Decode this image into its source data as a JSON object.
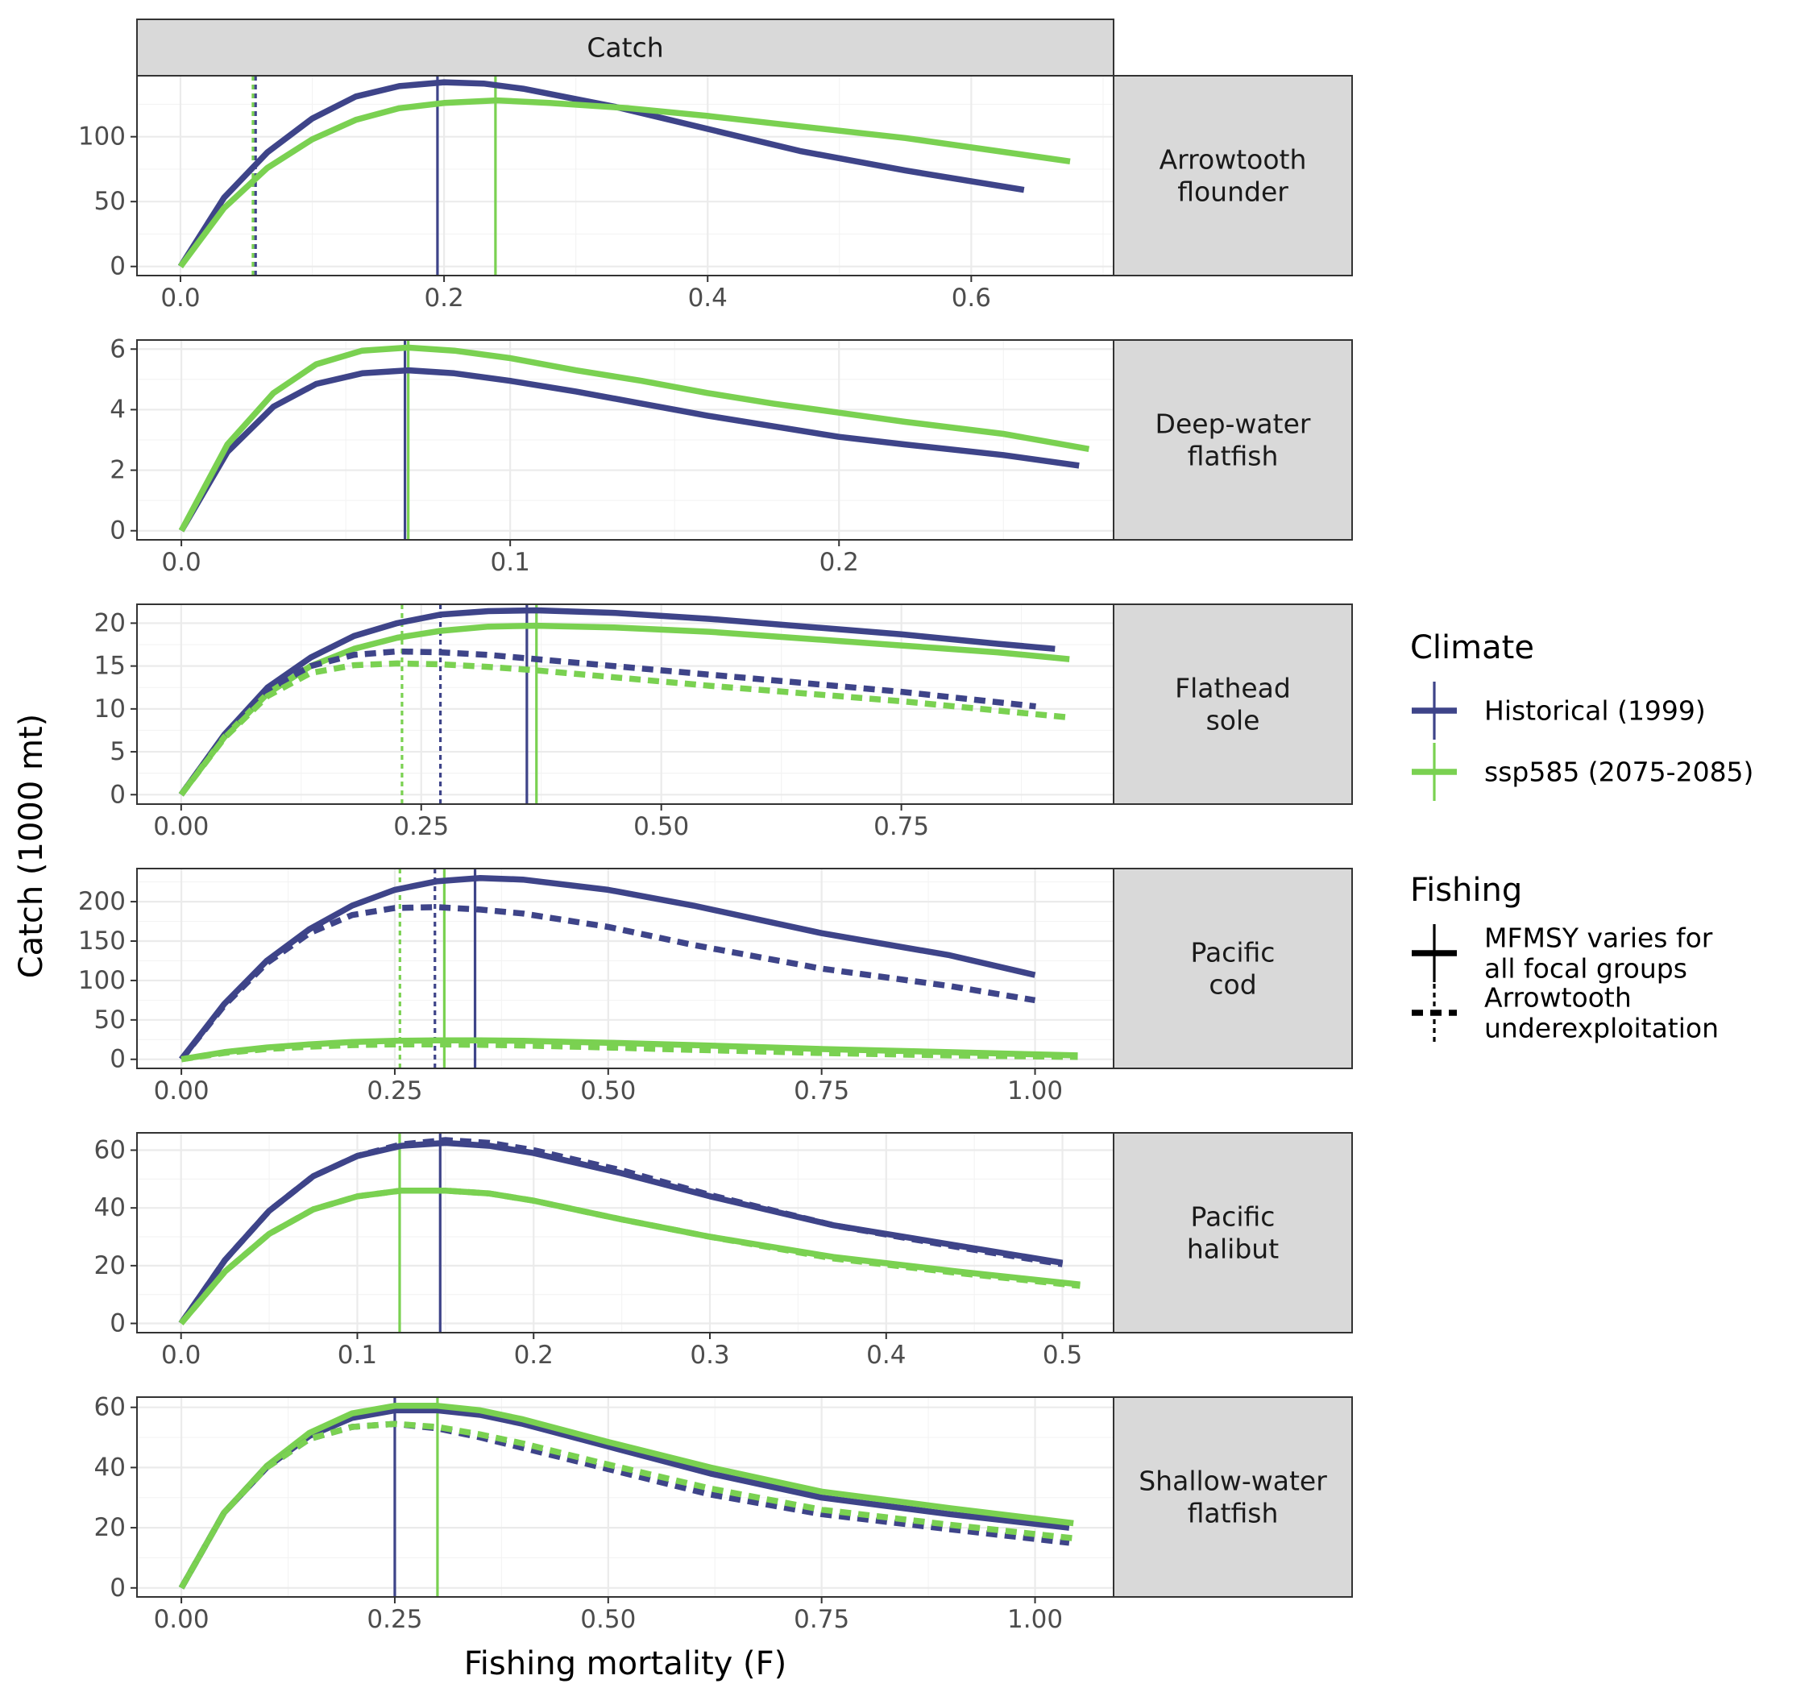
{
  "colors": {
    "historical": "#3e4489",
    "ssp585": "#7ad151"
  },
  "strip_top_label": "Catch",
  "axes": {
    "xlabel": "Fishing mortality (F)",
    "ylabel": "Catch (1000 mt)"
  },
  "legend": {
    "climate_title": "Climate",
    "climate_items": [
      {
        "label": "Historical (1999)",
        "color": "#3e4489"
      },
      {
        "label": "ssp585 (2075-2085)",
        "color": "#7ad151"
      }
    ],
    "fishing_title": "Fishing",
    "fishing_items": [
      {
        "lines": [
          "MFMSY varies for",
          "all focal groups"
        ],
        "linetype": "solid"
      },
      {
        "lines": [
          "Arrowtooth",
          "underexploitation"
        ],
        "linetype": "dashed"
      }
    ]
  },
  "chart_data": [
    {
      "type": "line",
      "panel": [
        "Arrowtooth",
        "flounder"
      ],
      "xlim": [
        -0.033,
        0.708
      ],
      "ylim": [
        -7,
        147
      ],
      "xticks": [
        0,
        0.2,
        0.4,
        0.6
      ],
      "xtick_labels": [
        "0.0",
        "0.2",
        "0.4",
        "0.6"
      ],
      "xminor": [
        0.1,
        0.3,
        0.5,
        0.7
      ],
      "yticks": [
        0,
        50,
        100
      ],
      "ytick_labels": [
        "0",
        "50",
        "100"
      ],
      "yminor": [
        25,
        75,
        125
      ],
      "series": [
        {
          "climate": "historical",
          "linetype": "solid",
          "x": [
            0,
            0.033,
            0.066,
            0.1,
            0.133,
            0.166,
            0.2,
            0.23,
            0.26,
            0.33,
            0.4,
            0.47,
            0.55,
            0.64
          ],
          "y": [
            0,
            53,
            88,
            114,
            131,
            139,
            142,
            141,
            137,
            123,
            106,
            89,
            74,
            59
          ]
        },
        {
          "climate": "ssp585",
          "linetype": "solid",
          "x": [
            0,
            0.033,
            0.066,
            0.1,
            0.133,
            0.166,
            0.2,
            0.24,
            0.28,
            0.34,
            0.4,
            0.47,
            0.55,
            0.675
          ],
          "y": [
            0,
            45,
            76,
            98,
            113,
            122,
            126,
            128,
            126,
            122,
            116,
            108,
            99,
            81
          ]
        }
      ],
      "vlines": [
        {
          "climate": "historical",
          "linetype": "solid",
          "x": 0.195
        },
        {
          "climate": "ssp585",
          "linetype": "solid",
          "x": 0.239
        },
        {
          "climate": "historical",
          "linetype": "dashed",
          "x": 0.057
        },
        {
          "climate": "ssp585",
          "linetype": "dashed",
          "x": 0.055
        }
      ]
    },
    {
      "type": "line",
      "panel": [
        "Deep-water",
        "flatfish"
      ],
      "xlim": [
        -0.0135,
        0.2835
      ],
      "ylim": [
        -0.3,
        6.3
      ],
      "xticks": [
        0,
        0.1,
        0.2
      ],
      "xtick_labels": [
        "0.0",
        "0.1",
        "0.2"
      ],
      "xminor": [
        0.05,
        0.15,
        0.25
      ],
      "yticks": [
        0,
        2,
        4,
        6
      ],
      "ytick_labels": [
        "0",
        "2",
        "4",
        "6"
      ],
      "yminor": [
        1,
        3,
        5
      ],
      "series": [
        {
          "climate": "historical",
          "linetype": "solid",
          "x": [
            0,
            0.014,
            0.028,
            0.041,
            0.055,
            0.069,
            0.083,
            0.1,
            0.12,
            0.14,
            0.16,
            0.18,
            0.2,
            0.22,
            0.25,
            0.273
          ],
          "y": [
            0,
            2.6,
            4.1,
            4.85,
            5.2,
            5.3,
            5.2,
            4.95,
            4.6,
            4.2,
            3.8,
            3.45,
            3.1,
            2.85,
            2.5,
            2.15
          ]
        },
        {
          "climate": "ssp585",
          "linetype": "solid",
          "x": [
            0,
            0.014,
            0.028,
            0.041,
            0.055,
            0.069,
            0.083,
            0.1,
            0.12,
            0.14,
            0.16,
            0.18,
            0.2,
            0.22,
            0.25,
            0.276
          ],
          "y": [
            0,
            2.85,
            4.55,
            5.5,
            5.95,
            6.05,
            5.95,
            5.7,
            5.3,
            4.95,
            4.55,
            4.2,
            3.9,
            3.6,
            3.2,
            2.7
          ]
        }
      ],
      "vlines": [
        {
          "climate": "historical",
          "linetype": "solid",
          "x": 0.068
        },
        {
          "climate": "ssp585",
          "linetype": "solid",
          "x": 0.069
        }
      ]
    },
    {
      "type": "line",
      "panel": [
        "Flathead",
        "sole"
      ],
      "xlim": [
        -0.046,
        0.971
      ],
      "ylim": [
        -1.1,
        22.2
      ],
      "xticks": [
        0,
        0.25,
        0.5,
        0.75
      ],
      "xtick_labels": [
        "0.00",
        "0.25",
        "0.50",
        "0.75"
      ],
      "xminor": [
        0.125,
        0.375,
        0.625,
        0.875
      ],
      "yticks": [
        0,
        5,
        10,
        15,
        20
      ],
      "ytick_labels": [
        "0",
        "5",
        "10",
        "15",
        "20"
      ],
      "yminor": [
        2.5,
        7.5,
        12.5,
        17.5
      ],
      "series": [
        {
          "climate": "historical",
          "linetype": "solid",
          "x": [
            0,
            0.045,
            0.09,
            0.135,
            0.18,
            0.225,
            0.27,
            0.32,
            0.37,
            0.45,
            0.55,
            0.65,
            0.75,
            0.85,
            0.91
          ],
          "y": [
            0,
            7,
            12.5,
            16,
            18.5,
            20,
            21,
            21.4,
            21.5,
            21.2,
            20.5,
            19.6,
            18.7,
            17.6,
            17
          ]
        },
        {
          "climate": "ssp585",
          "linetype": "solid",
          "x": [
            0,
            0.045,
            0.09,
            0.135,
            0.18,
            0.225,
            0.27,
            0.32,
            0.37,
            0.45,
            0.55,
            0.65,
            0.75,
            0.85,
            0.925
          ],
          "y": [
            0,
            6.7,
            11.8,
            15,
            17,
            18.3,
            19.1,
            19.6,
            19.7,
            19.5,
            19,
            18.2,
            17.4,
            16.6,
            15.8
          ]
        },
        {
          "climate": "historical",
          "linetype": "dashed",
          "x": [
            0,
            0.045,
            0.09,
            0.135,
            0.18,
            0.225,
            0.27,
            0.32,
            0.37,
            0.45,
            0.55,
            0.65,
            0.75,
            0.89
          ],
          "y": [
            0,
            6.9,
            12.2,
            15,
            16.3,
            16.7,
            16.6,
            16.3,
            15.8,
            15,
            14,
            13,
            12,
            10.3
          ]
        },
        {
          "climate": "ssp585",
          "linetype": "dashed",
          "x": [
            0,
            0.045,
            0.09,
            0.135,
            0.18,
            0.225,
            0.27,
            0.32,
            0.37,
            0.45,
            0.55,
            0.65,
            0.75,
            0.925
          ],
          "y": [
            0,
            6.6,
            11.5,
            14.2,
            15.1,
            15.3,
            15.2,
            14.9,
            14.5,
            13.7,
            12.7,
            11.8,
            10.9,
            9
          ]
        }
      ],
      "vlines": [
        {
          "climate": "historical",
          "linetype": "solid",
          "x": 0.36
        },
        {
          "climate": "ssp585",
          "linetype": "solid",
          "x": 0.37
        },
        {
          "climate": "historical",
          "linetype": "dashed",
          "x": 0.27
        },
        {
          "climate": "ssp585",
          "linetype": "dashed",
          "x": 0.23
        }
      ]
    },
    {
      "type": "line",
      "panel": [
        "Pacific",
        "cod"
      ],
      "xlim": [
        -0.052,
        1.092
      ],
      "ylim": [
        -11.5,
        242
      ],
      "xticks": [
        0,
        0.25,
        0.5,
        0.75,
        1
      ],
      "xtick_labels": [
        "0.00",
        "0.25",
        "0.50",
        "0.75",
        "1.00"
      ],
      "xminor": [
        0.125,
        0.375,
        0.625,
        0.875
      ],
      "yticks": [
        0,
        50,
        100,
        150,
        200
      ],
      "ytick_labels": [
        "0",
        "50",
        "100",
        "150",
        "200"
      ],
      "yminor": [
        25,
        75,
        125,
        175,
        225
      ],
      "series": [
        {
          "climate": "historical",
          "linetype": "solid",
          "x": [
            0,
            0.05,
            0.1,
            0.15,
            0.2,
            0.25,
            0.3,
            0.35,
            0.4,
            0.5,
            0.6,
            0.75,
            0.9,
            1.0
          ],
          "y": [
            0,
            70,
            125,
            165,
            195,
            215,
            226,
            230,
            228,
            215,
            195,
            160,
            132,
            107
          ]
        },
        {
          "climate": "historical",
          "linetype": "dashed",
          "x": [
            0,
            0.05,
            0.1,
            0.15,
            0.2,
            0.25,
            0.3,
            0.35,
            0.4,
            0.5,
            0.6,
            0.75,
            0.9,
            1.0
          ],
          "y": [
            0,
            68,
            122,
            160,
            183,
            192,
            193,
            190,
            185,
            168,
            145,
            115,
            93,
            75
          ]
        },
        {
          "climate": "ssp585",
          "linetype": "solid",
          "x": [
            0,
            0.05,
            0.1,
            0.15,
            0.2,
            0.25,
            0.3,
            0.35,
            0.4,
            0.5,
            0.6,
            0.75,
            0.9,
            1.05
          ],
          "y": [
            0,
            9,
            15,
            19,
            22,
            23.5,
            24,
            24,
            23.5,
            21,
            18,
            13,
            9,
            5
          ]
        },
        {
          "climate": "ssp585",
          "linetype": "dashed",
          "x": [
            0,
            0.05,
            0.1,
            0.15,
            0.2,
            0.25,
            0.3,
            0.35,
            0.4,
            0.5,
            0.6,
            0.75,
            0.9,
            1.05
          ],
          "y": [
            0,
            8,
            13,
            16,
            18,
            19,
            19,
            18.5,
            17.5,
            15,
            12,
            8,
            5,
            3
          ]
        }
      ],
      "vlines": [
        {
          "climate": "historical",
          "linetype": "solid",
          "x": 0.344
        },
        {
          "climate": "ssp585",
          "linetype": "solid",
          "x": 0.308
        },
        {
          "climate": "historical",
          "linetype": "dashed",
          "x": 0.297
        },
        {
          "climate": "ssp585",
          "linetype": "dashed",
          "x": 0.256
        }
      ]
    },
    {
      "type": "line",
      "panel": [
        "Pacific",
        "halibut"
      ],
      "xlim": [
        -0.025,
        0.529
      ],
      "ylim": [
        -3.2,
        66
      ],
      "xticks": [
        0,
        0.1,
        0.2,
        0.3,
        0.4,
        0.5
      ],
      "xtick_labels": [
        "0.0",
        "0.1",
        "0.2",
        "0.3",
        "0.4",
        "0.5"
      ],
      "xminor": [
        0.05,
        0.15,
        0.25,
        0.35,
        0.45
      ],
      "yticks": [
        0,
        20,
        40,
        60
      ],
      "ytick_labels": [
        "0",
        "20",
        "40",
        "60"
      ],
      "yminor": [
        10,
        30,
        50
      ],
      "series": [
        {
          "climate": "historical",
          "linetype": "solid",
          "x": [
            0,
            0.025,
            0.05,
            0.075,
            0.1,
            0.125,
            0.15,
            0.175,
            0.2,
            0.25,
            0.3,
            0.37,
            0.44,
            0.5
          ],
          "y": [
            0,
            22,
            39,
            51,
            58,
            61.5,
            62.5,
            61.5,
            59,
            52,
            44,
            34,
            27,
            21
          ]
        },
        {
          "climate": "historical",
          "linetype": "dashed",
          "x": [
            0,
            0.025,
            0.05,
            0.075,
            0.1,
            0.125,
            0.15,
            0.175,
            0.2,
            0.25,
            0.3,
            0.37,
            0.44,
            0.5
          ],
          "y": [
            0,
            22,
            39,
            51,
            58,
            62,
            63.5,
            62.5,
            60,
            53,
            44.5,
            34,
            26.5,
            20.5
          ]
        },
        {
          "climate": "ssp585",
          "linetype": "solid",
          "x": [
            0,
            0.025,
            0.05,
            0.075,
            0.1,
            0.125,
            0.15,
            0.175,
            0.2,
            0.25,
            0.3,
            0.37,
            0.44,
            0.51
          ],
          "y": [
            0,
            18,
            31,
            39.5,
            44,
            46,
            46,
            45,
            42.5,
            36,
            30,
            23,
            18,
            13.5
          ]
        },
        {
          "climate": "ssp585",
          "linetype": "dashed",
          "x": [
            0,
            0.025,
            0.05,
            0.075,
            0.1,
            0.125,
            0.15,
            0.175,
            0.2,
            0.25,
            0.3,
            0.37,
            0.44,
            0.51
          ],
          "y": [
            0,
            18,
            31,
            39.5,
            44,
            46,
            46,
            45,
            42.5,
            36,
            30,
            22.5,
            17.5,
            13
          ]
        }
      ],
      "vlines": [
        {
          "climate": "historical",
          "linetype": "solid",
          "x": 0.147
        },
        {
          "climate": "ssp585",
          "linetype": "solid",
          "x": 0.124
        }
      ]
    },
    {
      "type": "line",
      "panel": [
        "Shallow-water",
        "flatfish"
      ],
      "xlim": [
        -0.052,
        1.092
      ],
      "ylim": [
        -3,
        63.4
      ],
      "xticks": [
        0,
        0.25,
        0.5,
        0.75,
        1
      ],
      "xtick_labels": [
        "0.00",
        "0.25",
        "0.50",
        "0.75",
        "1.00"
      ],
      "xminor": [
        0.125,
        0.375,
        0.625,
        0.875
      ],
      "yticks": [
        0,
        20,
        40,
        60
      ],
      "ytick_labels": [
        "0",
        "20",
        "40",
        "60"
      ],
      "yminor": [
        10,
        30,
        50
      ],
      "series": [
        {
          "climate": "historical",
          "linetype": "solid",
          "x": [
            0,
            0.05,
            0.1,
            0.15,
            0.2,
            0.25,
            0.3,
            0.35,
            0.4,
            0.5,
            0.62,
            0.75,
            0.9,
            1.04
          ],
          "y": [
            0,
            25,
            40,
            50.5,
            56.5,
            59,
            59,
            57.5,
            54.5,
            47,
            38,
            30,
            24.5,
            20
          ]
        },
        {
          "climate": "ssp585",
          "linetype": "solid",
          "x": [
            0,
            0.05,
            0.1,
            0.15,
            0.2,
            0.25,
            0.3,
            0.35,
            0.4,
            0.5,
            0.62,
            0.75,
            0.9,
            1.045
          ],
          "y": [
            0,
            25,
            40.5,
            51.5,
            58,
            60.5,
            60.5,
            59,
            56,
            48.5,
            40,
            32,
            26.5,
            21.5
          ]
        },
        {
          "climate": "historical",
          "linetype": "dashed",
          "x": [
            0,
            0.05,
            0.1,
            0.15,
            0.2,
            0.25,
            0.3,
            0.35,
            0.4,
            0.5,
            0.62,
            0.75,
            0.9,
            1.04
          ],
          "y": [
            0,
            25,
            40,
            49.5,
            53.5,
            54.5,
            53,
            50,
            46.5,
            39.5,
            31,
            24.5,
            19.5,
            15
          ]
        },
        {
          "climate": "ssp585",
          "linetype": "dashed",
          "x": [
            0,
            0.05,
            0.1,
            0.15,
            0.2,
            0.25,
            0.3,
            0.35,
            0.4,
            0.5,
            0.62,
            0.75,
            0.9,
            1.045
          ],
          "y": [
            0,
            25,
            40,
            49.5,
            53.5,
            54.5,
            53.5,
            51,
            48,
            41,
            33,
            26,
            21,
            16.5
          ]
        }
      ],
      "vlines": [
        {
          "climate": "historical",
          "linetype": "solid",
          "x": 0.25
        },
        {
          "climate": "ssp585",
          "linetype": "solid",
          "x": 0.3
        }
      ]
    }
  ]
}
